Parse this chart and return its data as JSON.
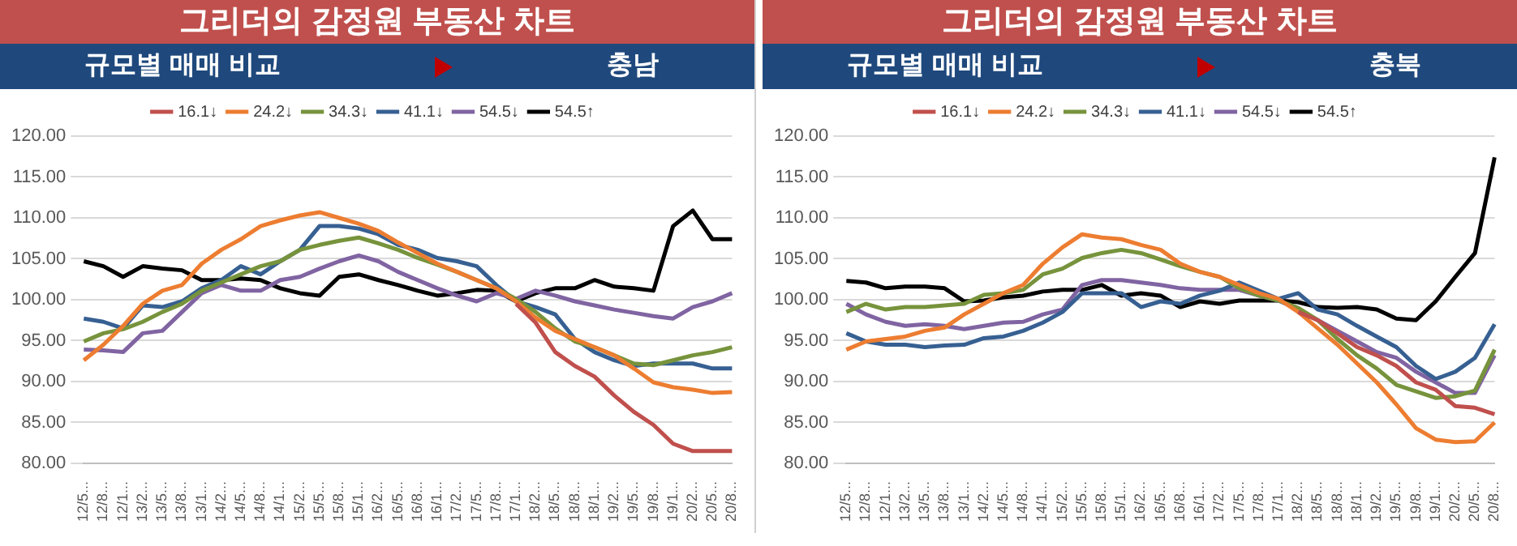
{
  "chart_data": [
    {
      "type": "line",
      "title": "그리더의 감정원 부동산 차트",
      "subtitle": "규모별 매매 비교",
      "annotations": [
        "충남"
      ],
      "categories": [
        "12/5...",
        "12/8...",
        "12/1...",
        "13/2...",
        "13/5...",
        "13/8...",
        "13/1...",
        "14/2...",
        "14/5...",
        "14/8...",
        "14/1...",
        "15/2...",
        "15/5...",
        "15/8...",
        "15/1...",
        "16/2...",
        "16/5...",
        "16/8...",
        "16/1...",
        "17/2...",
        "17/5...",
        "17/8...",
        "17/1...",
        "18/2...",
        "18/5...",
        "18/8...",
        "18/1...",
        "19/2...",
        "19/5...",
        "19/8...",
        "19/1...",
        "20/2...",
        "20/5...",
        "20/8..."
      ],
      "ylim": [
        80,
        120
      ],
      "yticks": [
        {
          "value": 80,
          "label": "80.00"
        },
        {
          "value": 85,
          "label": "85.00"
        },
        {
          "value": 90,
          "label": "90.00"
        },
        {
          "value": 95,
          "label": "95.00"
        },
        {
          "value": 100,
          "label": "100.00"
        },
        {
          "value": 105,
          "label": "105.00"
        },
        {
          "value": 110,
          "label": "110.00"
        },
        {
          "value": 115,
          "label": "115.00"
        },
        {
          "value": 120,
          "label": "120.00"
        }
      ],
      "grid": "y",
      "legend": "top",
      "marker": "none",
      "line_style": "solid",
      "series": [
        {
          "name": "16.1↓",
          "color": "#c0504d",
          "values": [
            null,
            null,
            null,
            null,
            null,
            null,
            null,
            null,
            null,
            null,
            null,
            null,
            null,
            null,
            null,
            null,
            null,
            null,
            null,
            null,
            null,
            null,
            99.5,
            97.2,
            93.6,
            91.9,
            90.6,
            88.3,
            86.3,
            84.7,
            82.4,
            81.5,
            81.5,
            81.5
          ]
        },
        {
          "name": "24.2↓",
          "color": "#ed7d31",
          "values": [
            92.6,
            94.5,
            96.8,
            99.5,
            101.1,
            101.8,
            104.4,
            106.1,
            107.4,
            109.0,
            109.7,
            110.3,
            110.7,
            110.0,
            109.3,
            108.4,
            107.0,
            105.7,
            104.4,
            103.4,
            102.4,
            101.4,
            99.8,
            97.8,
            96.2,
            95.2,
            94.2,
            93.2,
            91.6,
            89.9,
            89.3,
            89.0,
            88.6,
            88.7
          ]
        },
        {
          "name": "34.3↓",
          "color": "#77933c",
          "values": [
            94.9,
            95.9,
            96.4,
            97.3,
            98.5,
            99.5,
            101.1,
            102.1,
            103.1,
            104.1,
            104.7,
            106.1,
            106.7,
            107.2,
            107.6,
            106.9,
            106.1,
            105.1,
            104.3,
            103.4,
            102.4,
            101.4,
            100.1,
            98.5,
            96.5,
            94.9,
            94.2,
            93.2,
            92.2,
            92.0,
            92.6,
            93.2,
            93.6,
            94.2
          ]
        },
        {
          "name": "41.1↓",
          "color": "#376092",
          "values": [
            97.7,
            97.3,
            96.5,
            99.3,
            99.1,
            99.8,
            101.4,
            102.4,
            104.1,
            103.1,
            104.7,
            106.1,
            109.0,
            109.0,
            108.7,
            108.0,
            106.7,
            106.1,
            105.1,
            104.7,
            104.1,
            101.8,
            99.8,
            99.1,
            98.2,
            95.2,
            93.6,
            92.6,
            91.9,
            92.2,
            92.2,
            92.2,
            91.6,
            91.6
          ]
        },
        {
          "name": "54.5↓",
          "color": "#8064a2",
          "values": [
            93.9,
            93.8,
            93.6,
            95.9,
            96.2,
            98.5,
            100.8,
            101.8,
            101.1,
            101.1,
            102.4,
            102.8,
            103.8,
            104.7,
            105.4,
            104.7,
            103.4,
            102.4,
            101.4,
            100.5,
            99.8,
            100.8,
            100.1,
            101.1,
            100.5,
            99.8,
            99.3,
            98.8,
            98.4,
            98.0,
            97.7,
            99.1,
            99.8,
            100.8
          ]
        },
        {
          "name": "54.5↑",
          "color": "#000000",
          "values": [
            104.7,
            104.1,
            102.8,
            104.1,
            103.8,
            103.6,
            102.4,
            102.4,
            102.6,
            102.4,
            101.4,
            100.8,
            100.5,
            102.8,
            103.1,
            102.4,
            101.8,
            101.1,
            100.5,
            100.8,
            101.2,
            101.1,
            99.8,
            100.8,
            101.4,
            101.4,
            102.4,
            101.6,
            101.4,
            101.1,
            109.0,
            110.9,
            107.4,
            107.4
          ]
        }
      ]
    },
    {
      "type": "line",
      "title": "그리더의 감정원 부동산 차트",
      "subtitle": "규모별 매매 비교",
      "annotations": [
        "충북"
      ],
      "categories": [
        "12/5...",
        "12/8...",
        "12/1...",
        "13/2...",
        "13/5...",
        "13/8...",
        "13/1...",
        "14/2...",
        "14/5...",
        "14/8...",
        "14/1...",
        "15/2...",
        "15/5...",
        "15/8...",
        "15/1...",
        "16/2...",
        "16/5...",
        "16/8...",
        "16/1...",
        "17/2...",
        "17/5...",
        "17/8...",
        "17/1...",
        "18/2...",
        "18/5...",
        "18/8...",
        "18/1...",
        "19/2...",
        "19/5...",
        "19/8...",
        "19/1...",
        "20/2...",
        "20/5...",
        "20/8..."
      ],
      "ylim": [
        80,
        120
      ],
      "yticks": [
        {
          "value": 80,
          "label": "80.00"
        },
        {
          "value": 85,
          "label": "85.00"
        },
        {
          "value": 90,
          "label": "90.00"
        },
        {
          "value": 95,
          "label": "95.00"
        },
        {
          "value": 100,
          "label": "100.00"
        },
        {
          "value": 105,
          "label": "105.00"
        },
        {
          "value": 110,
          "label": "110.00"
        },
        {
          "value": 115,
          "label": "115.00"
        },
        {
          "value": 120,
          "label": "120.00"
        }
      ],
      "grid": "y",
      "legend": "top",
      "marker": "none",
      "line_style": "solid",
      "series": [
        {
          "name": "16.1↓",
          "color": "#c0504d",
          "values": [
            null,
            null,
            null,
            null,
            null,
            null,
            null,
            null,
            null,
            null,
            null,
            null,
            null,
            null,
            null,
            null,
            null,
            null,
            null,
            null,
            null,
            null,
            null,
            98.5,
            97.5,
            95.9,
            94.2,
            93.2,
            91.9,
            89.9,
            89.0,
            87.0,
            86.8,
            86.0
          ]
        },
        {
          "name": "24.2↓",
          "color": "#ed7d31",
          "values": [
            93.9,
            94.9,
            95.2,
            95.5,
            96.2,
            96.6,
            98.2,
            99.5,
            100.8,
            101.8,
            104.4,
            106.4,
            108.0,
            107.6,
            107.4,
            106.7,
            106.1,
            104.4,
            103.4,
            102.8,
            101.8,
            100.8,
            100.1,
            98.5,
            96.5,
            94.5,
            92.2,
            89.9,
            87.2,
            84.3,
            82.9,
            82.6,
            82.7,
            85.0
          ]
        },
        {
          "name": "34.3↓",
          "color": "#77933c",
          "values": [
            98.5,
            99.5,
            98.8,
            99.1,
            99.1,
            99.3,
            99.5,
            100.6,
            100.8,
            101.2,
            103.1,
            103.8,
            105.1,
            105.7,
            106.1,
            105.7,
            104.9,
            104.1,
            103.4,
            102.8,
            101.4,
            100.5,
            99.9,
            99.0,
            97.5,
            95.2,
            93.2,
            91.6,
            89.6,
            88.8,
            88.0,
            88.2,
            88.9,
            93.9
          ]
        },
        {
          "name": "41.1↓",
          "color": "#376092",
          "values": [
            95.9,
            94.9,
            94.5,
            94.5,
            94.2,
            94.4,
            94.5,
            95.3,
            95.5,
            96.2,
            97.2,
            98.5,
            100.8,
            100.8,
            100.8,
            99.1,
            99.8,
            99.5,
            100.5,
            101.1,
            102.1,
            101.1,
            100.1,
            100.8,
            98.8,
            98.2,
            96.8,
            95.5,
            94.2,
            91.9,
            90.3,
            91.2,
            92.9,
            97.0
          ]
        },
        {
          "name": "54.5↓",
          "color": "#8064a2",
          "values": [
            99.5,
            98.2,
            97.3,
            96.8,
            97.0,
            96.8,
            96.4,
            96.8,
            97.2,
            97.3,
            98.2,
            98.8,
            101.8,
            102.4,
            102.4,
            102.1,
            101.8,
            101.4,
            101.2,
            101.2,
            101.2,
            100.5,
            99.9,
            98.8,
            97.5,
            96.2,
            94.9,
            93.6,
            92.9,
            91.2,
            89.9,
            88.6,
            88.6,
            93.2
          ]
        },
        {
          "name": "54.5↑",
          "color": "#000000",
          "values": [
            102.3,
            102.1,
            101.4,
            101.6,
            101.6,
            101.4,
            99.8,
            99.9,
            100.3,
            100.5,
            101.0,
            101.2,
            101.2,
            101.8,
            100.5,
            100.8,
            100.5,
            99.1,
            99.8,
            99.5,
            99.9,
            99.9,
            99.9,
            99.7,
            99.1,
            99.0,
            99.1,
            98.8,
            97.7,
            97.5,
            99.8,
            102.8,
            105.7,
            117.4
          ]
        }
      ]
    }
  ]
}
